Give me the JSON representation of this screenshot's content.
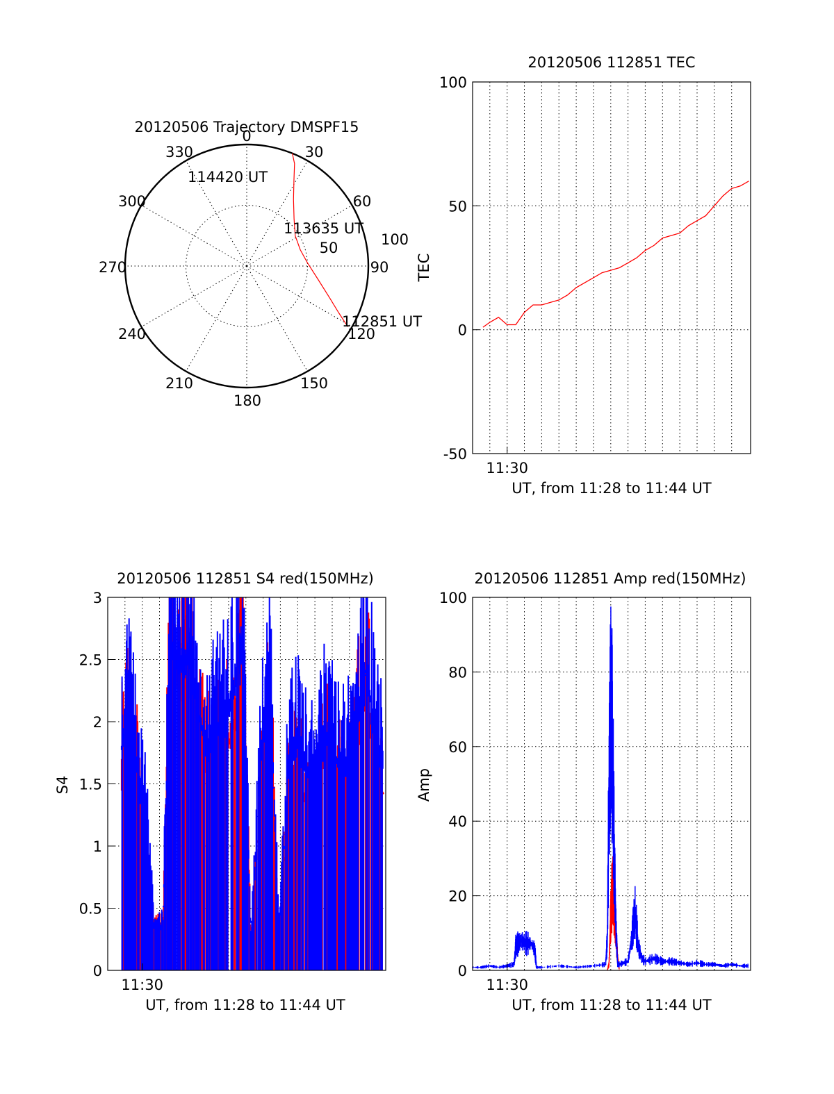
{
  "colors": {
    "red": "#ff0000",
    "blue": "#0000ff",
    "axes": "#000000",
    "background": "#ffffff"
  },
  "chart_data": [
    {
      "id": "polar",
      "type": "scatter",
      "projection": "polar",
      "title": "20120506 Trajectory DMSPF15",
      "azimuth_labels": [
        "0",
        "30",
        "60",
        "90",
        "120",
        "150",
        "180",
        "210",
        "240",
        "270",
        "300",
        "330"
      ],
      "radial_ticks": [
        "50",
        "100"
      ],
      "rlim": [
        0,
        100
      ],
      "series": [
        {
          "color": "#ff0000",
          "points": [
            [
              121,
              97
            ],
            [
              117,
              85
            ],
            [
              111,
              73
            ],
            [
              101,
              60
            ],
            [
              87,
              50
            ],
            [
              73,
              46
            ],
            [
              58,
              47
            ],
            [
              45,
              55
            ],
            [
              35,
              67
            ],
            [
              29,
              80
            ],
            [
              25,
              93
            ],
            [
              22,
              100
            ]
          ]
        }
      ],
      "annotations": [
        {
          "text": "112851 UT",
          "azimuth": 121,
          "radius": 97
        },
        {
          "text": "113635 UT",
          "azimuth": 73,
          "radius": 46
        },
        {
          "text": "114420 UT",
          "azimuth": 332,
          "radius": 100
        }
      ]
    },
    {
      "id": "tec",
      "type": "line",
      "title": "20120506 112851 TEC",
      "ylabel": "TEC",
      "xlabel": "UT, from 11:28 to 11:44 UT",
      "xtick_label": "11:30",
      "ylim": [
        -50,
        100
      ],
      "yticks": [
        "-50",
        "0",
        "50",
        "100"
      ],
      "xlim": [
        0,
        16.1
      ],
      "grid": true,
      "series": [
        {
          "name": "",
          "color": "#ff0000",
          "x": [
            0.6,
            1,
            1.5,
            2,
            2.5,
            3,
            3.5,
            4,
            4.5,
            5,
            5.5,
            6,
            6.5,
            7,
            7.5,
            8,
            8.5,
            9,
            9.5,
            10,
            10.5,
            11,
            11.5,
            12,
            12.5,
            13,
            13.5,
            14,
            14.5,
            15,
            15.5,
            16
          ],
          "y": [
            1,
            3,
            5,
            2,
            2,
            7,
            10,
            10,
            11,
            12,
            14,
            17,
            19,
            21,
            23,
            24,
            25,
            27,
            29,
            32,
            34,
            37,
            38,
            39,
            42,
            44,
            46,
            50,
            54,
            57,
            58,
            60
          ]
        }
      ]
    },
    {
      "id": "s4",
      "type": "line",
      "title": "20120506 112851 S4 red(150MHz)",
      "ylabel": "S4",
      "xlabel": "UT, from 11:28 to 11:44 UT",
      "xtick_label": "11:30",
      "ylim": [
        0,
        3
      ],
      "yticks": [
        "0",
        "0.5",
        "1",
        "1.5",
        "2",
        "2.5",
        "3"
      ],
      "xlim": [
        0,
        16.1
      ],
      "grid": true,
      "series": [
        {
          "name": "",
          "color": "#ff0000",
          "x": [
            0.8,
            1.2,
            1.7,
            2.2,
            2.7,
            3.2,
            3.6,
            4.2,
            4.8,
            5.2,
            5.8,
            6.5,
            7.2,
            7.8,
            8.3,
            8.9,
            9.4,
            9.9,
            10.5,
            11,
            11.5,
            12,
            12.5,
            13,
            13.5,
            14,
            14.5,
            15,
            15.5,
            16
          ],
          "y": [
            1.7,
            2.0,
            1.6,
            0.9,
            0.35,
            0.35,
            2.7,
            2.4,
            2.6,
            2.0,
            1.7,
            1.8,
            2.0,
            2.6,
            0.2,
            1.6,
            2.3,
            0.2,
            1.5,
            1.7,
            1.4,
            1.2,
            1.8,
            1.6,
            1.5,
            1.5,
            2.0,
            2.4,
            1.6,
            1.5
          ]
        },
        {
          "name": "",
          "color": "#0000ff",
          "x": [
            0.8,
            1.2,
            1.7,
            2.2,
            2.7,
            3.2,
            3.6,
            4.2,
            4.8,
            5.2,
            5.8,
            6.5,
            7.2,
            7.8,
            8.3,
            8.9,
            9.4,
            9.9,
            10.5,
            11,
            11.5,
            12,
            12.5,
            13,
            13.5,
            14,
            14.5,
            15,
            15.5,
            16
          ],
          "y": [
            1.9,
            2.2,
            1.7,
            1.3,
            0.32,
            0.37,
            2.8,
            2.6,
            2.7,
            2.2,
            1.9,
            2.1,
            2.3,
            2.8,
            0.25,
            1.9,
            2.5,
            0.3,
            1.8,
            2.0,
            1.7,
            1.6,
            2.0,
            1.9,
            1.7,
            1.8,
            2.2,
            2.6,
            1.9,
            1.8
          ]
        }
      ]
    },
    {
      "id": "amp",
      "type": "line",
      "title": "20120506 112851 Amp red(150MHz)",
      "ylabel": "Amp",
      "xlabel": "UT, from 11:28 to 11:44 UT",
      "xtick_label": "11:30",
      "ylim": [
        0,
        100
      ],
      "yticks": [
        "0",
        "20",
        "40",
        "60",
        "80",
        "100"
      ],
      "xlim": [
        0,
        16.1
      ],
      "grid": true,
      "series": [
        {
          "name": "",
          "color": "#ff0000",
          "x": [
            7.8,
            7.9,
            8.0,
            8.1,
            8.2,
            8.3,
            8.4,
            8.5
          ],
          "y": [
            0,
            2,
            18,
            28,
            22,
            12,
            4,
            0
          ]
        },
        {
          "name": "",
          "color": "#0000ff",
          "x": [
            0,
            0.5,
            1,
            1.5,
            2,
            2.4,
            2.5,
            2.8,
            3.1,
            3.4,
            3.6,
            3.7,
            4,
            5,
            6,
            7,
            7.7,
            7.8,
            7.9,
            8.0,
            8.1,
            8.2,
            8.3,
            8.4,
            8.5,
            9,
            9.2,
            9.4,
            9.6,
            9.8,
            10,
            10.5,
            11,
            11.5,
            12,
            12.5,
            13,
            13.5,
            14,
            14.5,
            15,
            15.5,
            16
          ],
          "y": [
            1,
            1,
            1.5,
            1,
            1.5,
            2,
            8,
            10,
            9,
            9,
            7,
            1,
            1,
            1.5,
            1,
            1.5,
            2,
            10,
            60,
            88,
            75,
            40,
            15,
            2,
            2,
            3,
            10,
            20,
            8,
            4,
            3,
            4,
            3,
            3,
            2.5,
            2,
            2.5,
            2,
            2,
            1.5,
            2,
            1.5,
            1.5
          ]
        }
      ]
    }
  ]
}
